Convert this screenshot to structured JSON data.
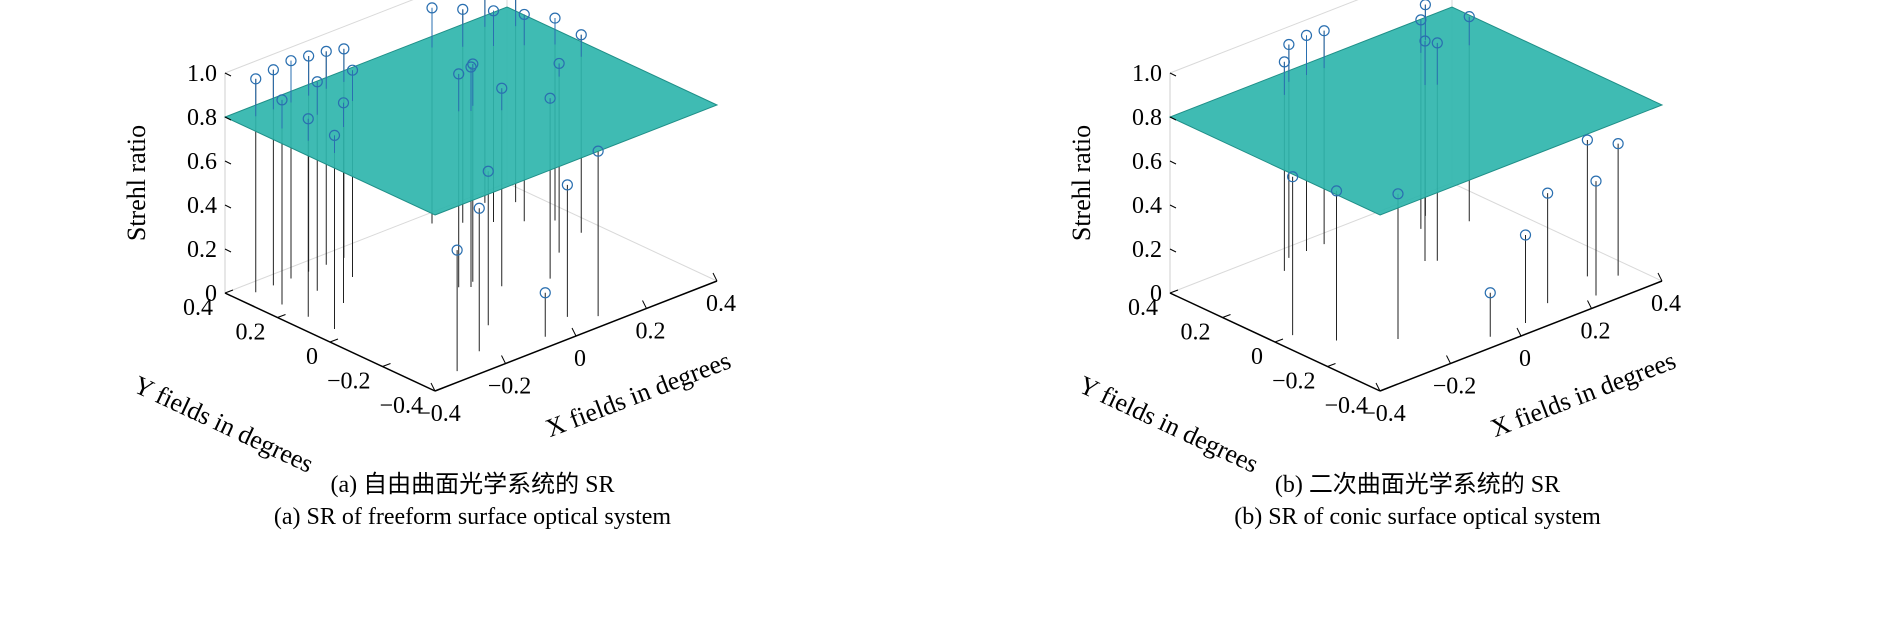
{
  "chart_data": [
    {
      "type": "3d-stem-surface",
      "caption_cn": "(a) 自由曲面光学系统的 SR",
      "caption_en": "(a) SR of freeform surface optical system",
      "xlabel": "X fields in degrees",
      "ylabel": "Y fields in degrees",
      "zlabel": "Strehl ratio",
      "xlim": [
        -0.4,
        0.4
      ],
      "ylim": [
        -0.4,
        0.4
      ],
      "zlim": [
        0,
        1.0
      ],
      "x_ticks": [
        "−0.4",
        "−0.2",
        "0",
        "0.2",
        "0.4"
      ],
      "y_ticks": [
        "−0.4",
        "−0.2",
        "0",
        "0.2",
        "0.4"
      ],
      "z_ticks": [
        "0",
        "0.2",
        "0.4",
        "0.6",
        "0.8",
        "1.0"
      ],
      "surface_level": 0.8,
      "points": [
        {
          "x": -0.35,
          "y": 0.35,
          "z": 0.97
        },
        {
          "x": -0.3,
          "y": 0.35,
          "z": 0.98
        },
        {
          "x": -0.25,
          "y": 0.35,
          "z": 0.99
        },
        {
          "x": -0.2,
          "y": 0.35,
          "z": 0.98
        },
        {
          "x": -0.15,
          "y": 0.35,
          "z": 0.97
        },
        {
          "x": -0.1,
          "y": 0.35,
          "z": 0.95
        },
        {
          "x": -0.35,
          "y": 0.25,
          "z": 0.93
        },
        {
          "x": -0.25,
          "y": 0.25,
          "z": 0.95
        },
        {
          "x": -0.15,
          "y": 0.25,
          "z": 0.94
        },
        {
          "x": -0.35,
          "y": 0.15,
          "z": 0.9
        },
        {
          "x": -0.25,
          "y": 0.15,
          "z": 0.91
        },
        {
          "x": -0.35,
          "y": 0.05,
          "z": 0.88
        },
        {
          "x": 0.0,
          "y": 0.0,
          "z": 1.0
        },
        {
          "x": 0.02,
          "y": 0.02,
          "z": 0.99
        },
        {
          "x": -0.02,
          "y": 0.02,
          "z": 0.97
        },
        {
          "x": 0.05,
          "y": -0.05,
          "z": 0.9
        },
        {
          "x": 0.15,
          "y": 0.35,
          "z": 0.98
        },
        {
          "x": 0.2,
          "y": 0.3,
          "z": 0.97
        },
        {
          "x": 0.25,
          "y": 0.25,
          "z": 0.96
        },
        {
          "x": 0.3,
          "y": 0.2,
          "z": 0.94
        },
        {
          "x": 0.35,
          "y": 0.15,
          "z": 0.92
        },
        {
          "x": 0.35,
          "y": 0.3,
          "z": 0.95
        },
        {
          "x": 0.3,
          "y": 0.35,
          "z": 0.97
        },
        {
          "x": 0.35,
          "y": 0.05,
          "z": 0.9
        },
        {
          "x": 0.25,
          "y": 0.0,
          "z": 0.86
        },
        {
          "x": 0.15,
          "y": -0.1,
          "z": 0.82
        },
        {
          "x": -0.1,
          "y": -0.2,
          "z": 0.7
        },
        {
          "x": -0.2,
          "y": -0.3,
          "z": 0.65
        },
        {
          "x": -0.3,
          "y": -0.35,
          "z": 0.55
        },
        {
          "x": 0.05,
          "y": -0.3,
          "z": 0.6
        },
        {
          "x": 0.1,
          "y": -0.35,
          "z": 0.75
        },
        {
          "x": -0.05,
          "y": -0.35,
          "z": 0.2
        }
      ]
    },
    {
      "type": "3d-stem-surface",
      "caption_cn": "(b) 二次曲面光学系统的 SR",
      "caption_en": "(b) SR of conic surface optical system",
      "xlabel": "X fields in degrees",
      "ylabel": "Y fields in degrees",
      "zlabel": "Strehl ratio",
      "xlim": [
        -0.4,
        0.4
      ],
      "ylim": [
        -0.4,
        0.4
      ],
      "zlim": [
        0,
        1.0
      ],
      "x_ticks": [
        "−0.4",
        "−0.2",
        "0",
        "0.2",
        "0.4"
      ],
      "y_ticks": [
        "−0.4",
        "−0.2",
        "0",
        "0.2",
        "0.4"
      ],
      "z_ticks": [
        "0",
        "0.2",
        "0.4",
        "0.6",
        "0.8",
        "1.0"
      ],
      "surface_level": 0.8,
      "points": [
        {
          "x": -0.1,
          "y": 0.35,
          "z": 0.97
        },
        {
          "x": -0.05,
          "y": 0.35,
          "z": 0.98
        },
        {
          "x": 0.0,
          "y": 0.35,
          "z": 0.97
        },
        {
          "x": -0.15,
          "y": 0.3,
          "z": 0.95
        },
        {
          "x": 0.1,
          "y": 0.1,
          "z": 1.0
        },
        {
          "x": 0.12,
          "y": 0.08,
          "z": 0.99
        },
        {
          "x": 0.2,
          "y": 0.25,
          "z": 0.95
        },
        {
          "x": 0.25,
          "y": 0.3,
          "z": 0.96
        },
        {
          "x": 0.3,
          "y": 0.2,
          "z": 0.93
        },
        {
          "x": -0.35,
          "y": 0.0,
          "z": 0.72
        },
        {
          "x": -0.3,
          "y": -0.1,
          "z": 0.68
        },
        {
          "x": -0.2,
          "y": -0.2,
          "z": 0.66
        },
        {
          "x": 0.3,
          "y": -0.25,
          "z": 0.62
        },
        {
          "x": 0.35,
          "y": -0.3,
          "z": 0.6
        },
        {
          "x": 0.25,
          "y": -0.35,
          "z": 0.52
        },
        {
          "x": 0.15,
          "y": -0.3,
          "z": 0.5
        },
        {
          "x": 0.05,
          "y": -0.35,
          "z": 0.4
        },
        {
          "x": -0.05,
          "y": -0.35,
          "z": 0.2
        }
      ]
    }
  ]
}
